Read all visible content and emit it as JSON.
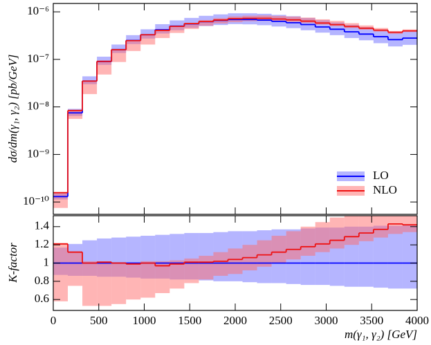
{
  "chart_data": [
    {
      "type": "histogram",
      "y_label": "dσ/dm(γ₁, γ₂) [pb/GeV]",
      "log_y": true,
      "legend": "lower right",
      "bins": [
        0,
        160,
        320,
        480,
        640,
        800,
        960,
        1120,
        1280,
        1440,
        1600,
        1760,
        1920,
        2080,
        2240,
        2400,
        2560,
        2720,
        2880,
        3040,
        3200,
        3360,
        3520,
        3680,
        3840,
        4000
      ],
      "xlim": [
        0,
        4000
      ],
      "ylim": [
        5.5e-11,
        1.5e-06
      ],
      "yticks": [
        {
          "value": 1e-10,
          "label": "10⁻¹⁰"
        },
        {
          "value": 1e-09,
          "label": "10⁻⁹"
        },
        {
          "value": 1e-08,
          "label": "10⁻⁸"
        },
        {
          "value": 1e-07,
          "label": "10⁻⁷"
        },
        {
          "value": 1e-06,
          "label": "10⁻⁶"
        }
      ],
      "series": [
        {
          "name": "LO",
          "color": "#0000ff",
          "band_color": "#6b6bff",
          "values": [
            1.3e-10,
            7.5e-09,
            3.5e-08,
            9e-08,
            1.6e-07,
            2.5e-07,
            3.3e-07,
            4.2e-07,
            5e-07,
            5.6e-07,
            6.2e-07,
            6.6e-07,
            6.9e-07,
            6.9e-07,
            6.7e-07,
            6.3e-07,
            5.9e-07,
            5.4e-07,
            4.8e-07,
            4.3e-07,
            3.8e-07,
            3.4e-07,
            3e-07,
            2.6e-07,
            2.8e-07
          ],
          "band_low": [
            1.13e-10,
            6.45e-09,
            3e-08,
            7.65e-08,
            1.36e-07,
            2.1e-07,
            2.74e-07,
            3.49e-07,
            4.1e-07,
            4.59e-07,
            5.02e-07,
            5.28e-07,
            5.52e-07,
            5.45e-07,
            5.23e-07,
            4.91e-07,
            4.54e-07,
            4.1e-07,
            3.65e-07,
            3.23e-07,
            2.81e-07,
            2.52e-07,
            2.19e-07,
            1.87e-07,
            2.02e-07
          ],
          "band_high": [
            1.52e-10,
            9.1e-09,
            4.4e-08,
            1.14e-07,
            2.05e-07,
            3.23e-07,
            4.29e-07,
            5.5e-07,
            6.6e-07,
            7.45e-07,
            8.25e-07,
            8.84e-07,
            9.32e-07,
            9.32e-07,
            9.11e-07,
            8.63e-07,
            8.08e-07,
            7.45e-07,
            6.67e-07,
            5.98e-07,
            5.32e-07,
            4.76e-07,
            4.23e-07,
            3.67e-07,
            3.98e-07
          ]
        },
        {
          "name": "NLO",
          "color": "#ee1111",
          "band_color": "#ff6b6b",
          "values": [
            1.57e-10,
            8.4e-09,
            3.5e-08,
            9.1e-08,
            1.6e-07,
            2.48e-07,
            3.3e-07,
            4.07e-07,
            4.95e-07,
            5.66e-07,
            6.26e-07,
            6.73e-07,
            7.18e-07,
            7.31e-07,
            7.3e-07,
            7.06e-07,
            6.79e-07,
            6.37e-07,
            5.81e-07,
            5.38e-07,
            4.9e-07,
            4.52e-07,
            4.11e-07,
            3.72e-07,
            3.98e-07
          ],
          "band_low": [
            7.5e-11,
            5.6e-09,
            1.86e-08,
            4.8e-08,
            8.8e-08,
            1.5e-07,
            2.05e-07,
            2.81e-07,
            3.6e-07,
            4.37e-07,
            5.08e-07,
            5.68e-07,
            6.07e-07,
            6.35e-07,
            6.43e-07,
            6.3e-07,
            6.14e-07,
            5.83e-07,
            5.38e-07,
            4.99e-07,
            4.56e-07,
            4.22e-07,
            3.84e-07,
            3.43e-07,
            3.75e-07
          ],
          "band_high": [
            1.59e-10,
            8.5e-09,
            3.57e-08,
            9.2e-08,
            1.62e-07,
            2.5e-07,
            3.37e-07,
            4.28e-07,
            5.15e-07,
            5.88e-07,
            6.7e-07,
            7.39e-07,
            8e-07,
            8.28e-07,
            8.38e-07,
            8.19e-07,
            7.97e-07,
            7.56e-07,
            6.96e-07,
            6.45e-07,
            5.78e-07,
            5.17e-07,
            4.56e-07,
            3.95e-07,
            4.26e-07
          ]
        }
      ]
    },
    {
      "type": "histogram",
      "y_label": "K-factor",
      "x_label": "m(γ₁, γ₂) [GeV]",
      "bins": [
        0,
        160,
        320,
        480,
        640,
        800,
        960,
        1120,
        1280,
        1440,
        1600,
        1760,
        1920,
        2080,
        2240,
        2400,
        2560,
        2720,
        2880,
        3040,
        3200,
        3360,
        3520,
        3680,
        3840,
        4000
      ],
      "xlim": [
        0,
        4000
      ],
      "xticks": [
        0,
        500,
        1000,
        1500,
        2000,
        2500,
        3000,
        3500,
        4000
      ],
      "ylim": [
        0.48,
        1.52
      ],
      "yticks": [
        0.6,
        0.8,
        1,
        1.2,
        1.4
      ],
      "series": [
        {
          "color": "#0000ff",
          "band_color": "#6b6bff",
          "values": [
            1,
            1,
            1,
            1,
            1,
            1,
            1,
            1,
            1,
            1,
            1,
            1,
            1,
            1,
            1,
            1,
            1,
            1,
            1,
            1,
            1,
            1,
            1,
            1,
            1
          ],
          "band_low": [
            0.87,
            0.86,
            0.86,
            0.85,
            0.85,
            0.84,
            0.83,
            0.83,
            0.82,
            0.82,
            0.81,
            0.8,
            0.8,
            0.79,
            0.78,
            0.78,
            0.77,
            0.76,
            0.76,
            0.75,
            0.74,
            0.74,
            0.73,
            0.72,
            0.72
          ],
          "band_high": [
            1.17,
            1.21,
            1.25,
            1.27,
            1.28,
            1.29,
            1.3,
            1.31,
            1.32,
            1.33,
            1.33,
            1.34,
            1.35,
            1.35,
            1.36,
            1.37,
            1.37,
            1.38,
            1.39,
            1.39,
            1.4,
            1.4,
            1.41,
            1.41,
            1.42
          ]
        },
        {
          "color": "#ee1111",
          "band_color": "#ff6b6b",
          "values": [
            1.21,
            1.12,
            1.0,
            1.01,
            1.0,
            0.99,
            1.0,
            0.97,
            0.99,
            1.01,
            1.01,
            1.02,
            1.04,
            1.06,
            1.09,
            1.12,
            1.15,
            1.18,
            1.21,
            1.25,
            1.29,
            1.33,
            1.37,
            1.43,
            1.42
          ],
          "band_low": [
            0.58,
            0.75,
            0.53,
            0.53,
            0.55,
            0.6,
            0.62,
            0.67,
            0.72,
            0.78,
            0.82,
            0.86,
            0.88,
            0.92,
            0.96,
            1.0,
            1.04,
            1.08,
            1.12,
            1.16,
            1.2,
            1.24,
            1.28,
            1.32,
            1.34
          ],
          "band_high": [
            1.22,
            1.13,
            1.02,
            1.02,
            1.01,
            1.0,
            1.02,
            1.02,
            1.03,
            1.05,
            1.08,
            1.12,
            1.16,
            1.2,
            1.25,
            1.3,
            1.35,
            1.4,
            1.45,
            1.5,
            1.52,
            1.52,
            1.52,
            1.52,
            1.52
          ]
        }
      ]
    }
  ]
}
